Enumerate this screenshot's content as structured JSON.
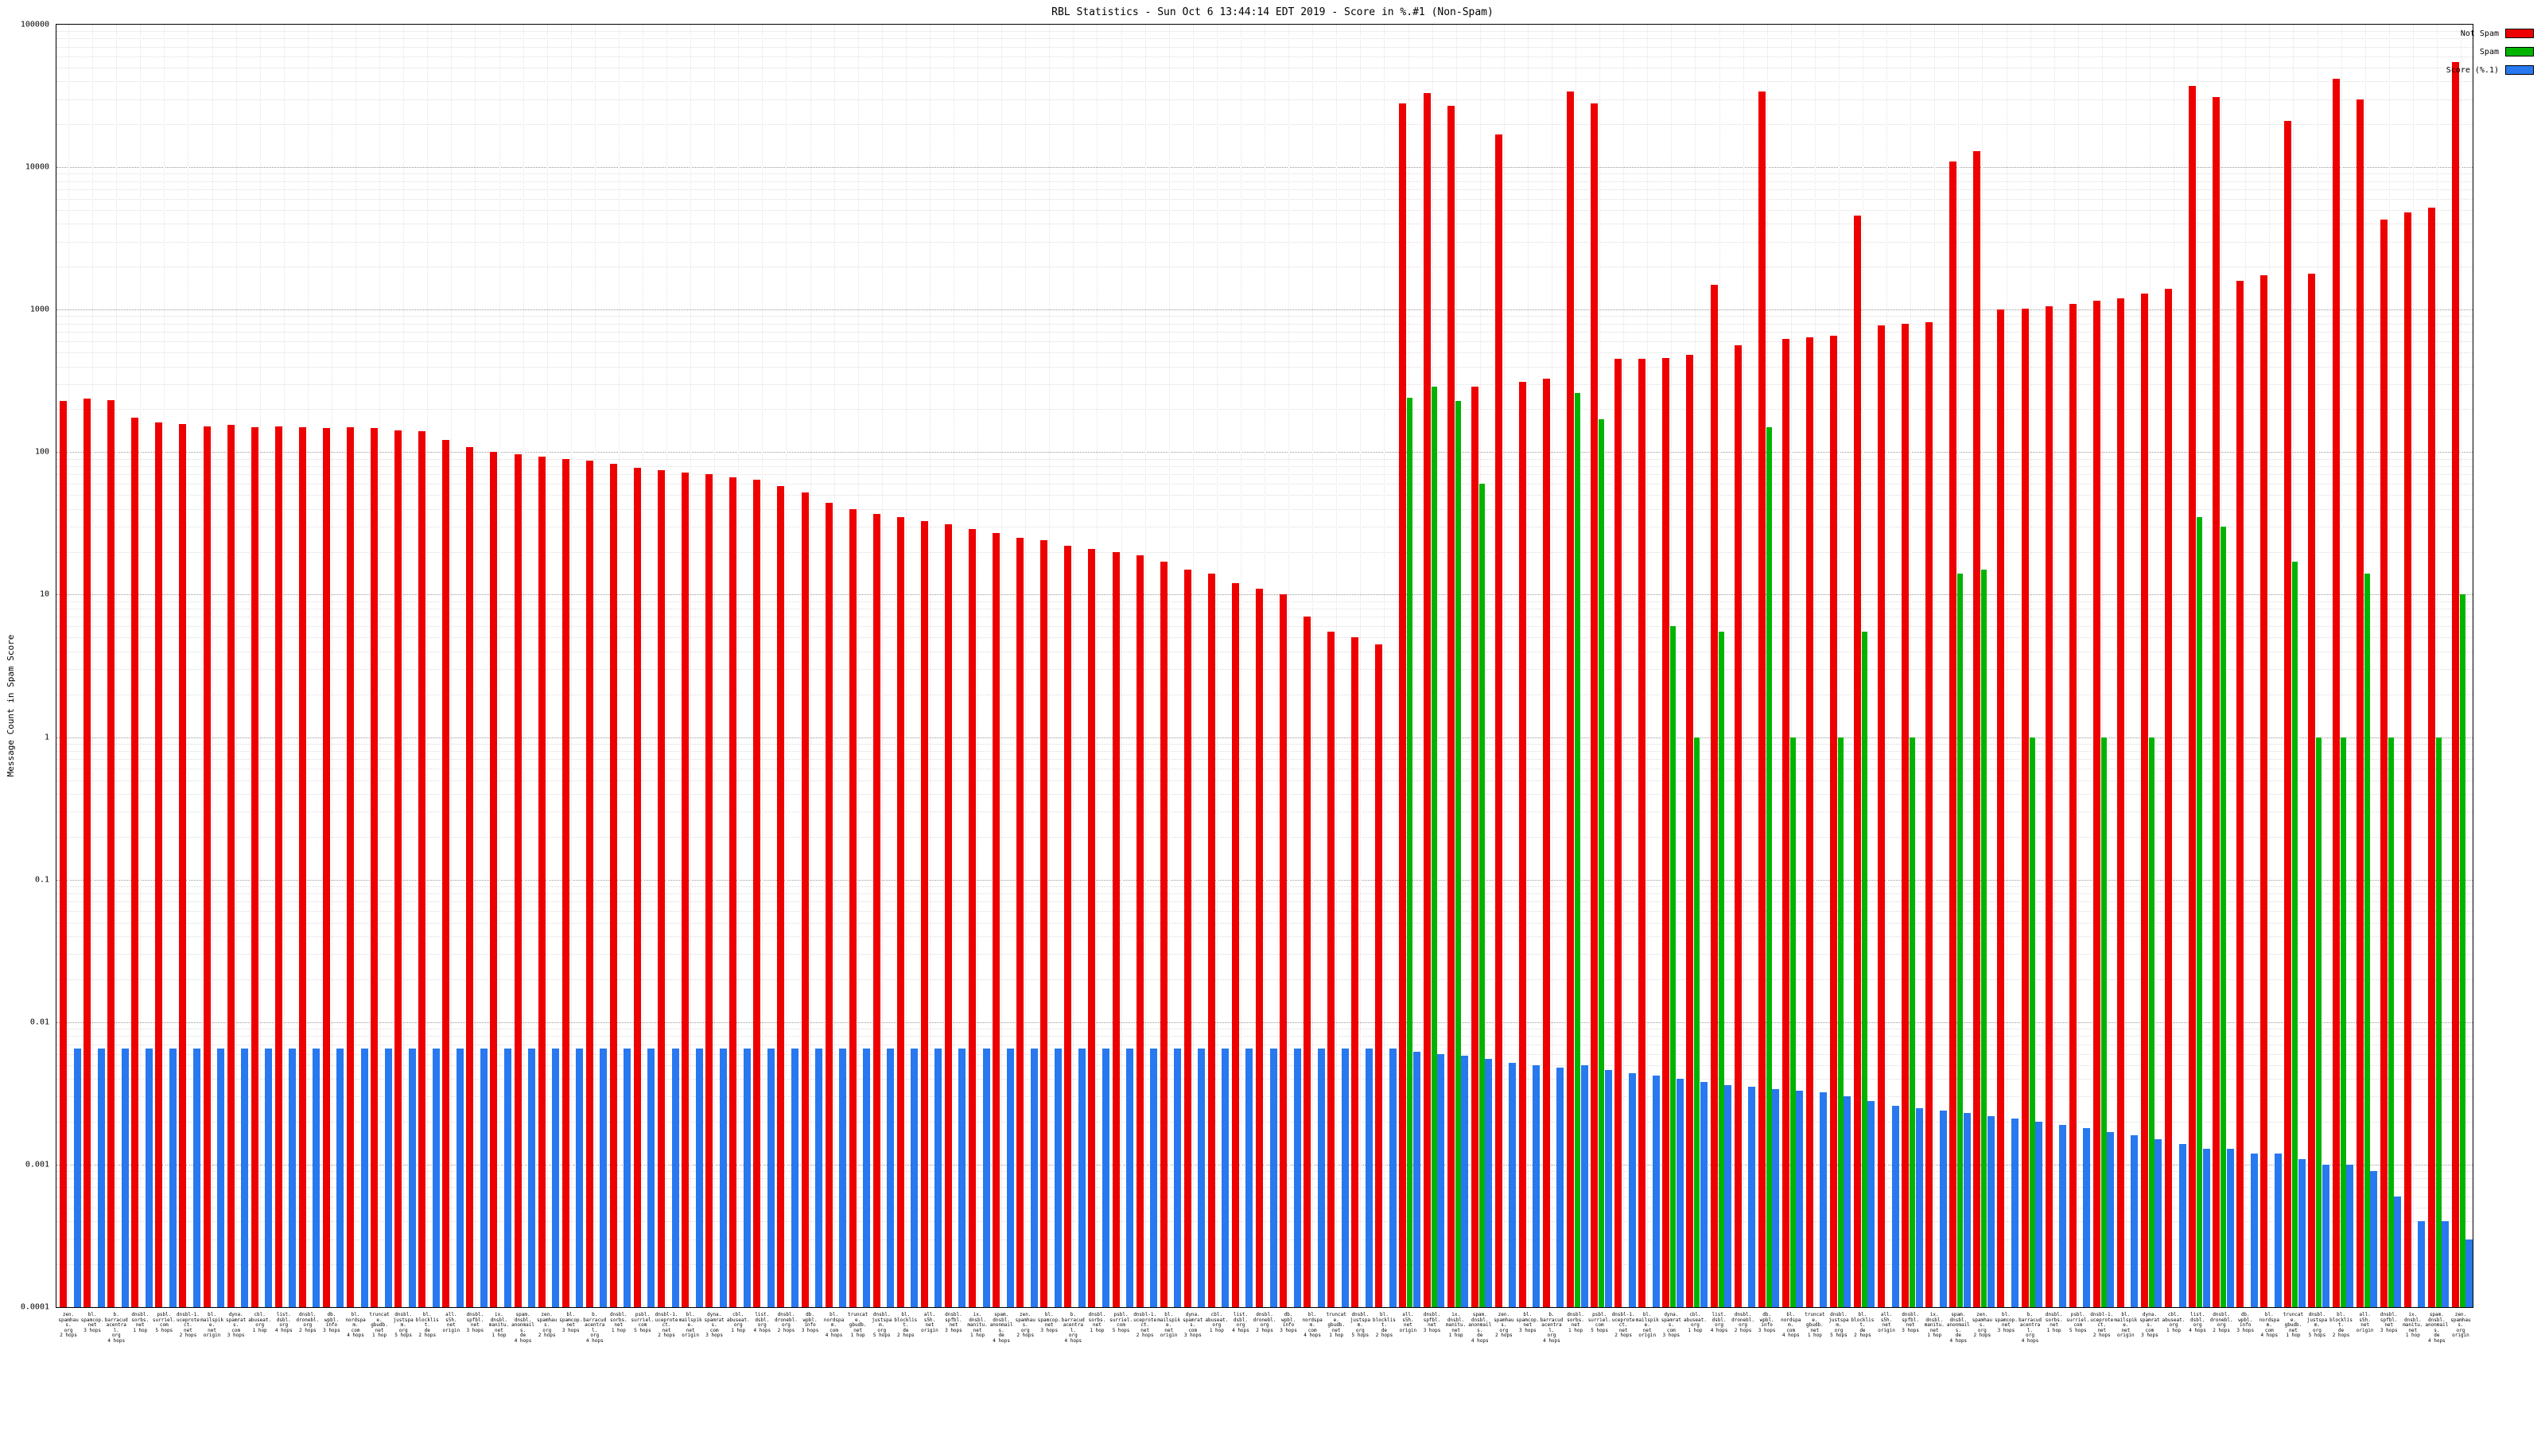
{
  "chart_data": {
    "type": "bar",
    "title": "RBL Statistics - Sun Oct 6 13:44:14 EDT 2019 - Score in %.#1 (Non-Spam)",
    "ylabel": "Message Count in Spam Score",
    "log_scale": true,
    "grid": true,
    "ylim": [
      0.0001,
      100000
    ],
    "yticks": [
      "100000",
      "10000",
      "1000",
      "100",
      "10",
      "1",
      "0.1",
      "0.01",
      "0.001",
      "0.0001"
    ],
    "legend": {
      "position": "top-right",
      "entries": [
        {
          "label": "Not Spam",
          "color": "#ee0000"
        },
        {
          "label": "Spam",
          "color": "#00b400"
        },
        {
          "label": "Score (%.1)",
          "color": "#2878f0"
        }
      ]
    },
    "series_names": [
      "Not Spam",
      "Spam",
      "Score (%.1)"
    ],
    "groups": [
      [
        "zen.spamhaus.org|2 hops",
        230,
        null,
        0.0065
      ],
      [
        "bl.spamcop.net|3 hops",
        238,
        null,
        0.0065
      ],
      [
        "b.barracudacentral.org|4 hops",
        232,
        null,
        0.0065
      ],
      [
        "dnsbl.sorbs.net|1 hop",
        175,
        null,
        0.0065
      ],
      [
        "psbl.surriel.com|5 hops",
        162,
        null,
        0.0065
      ],
      [
        "dnsbl-1.uceprotect.net|2 hops",
        158,
        null,
        0.0065
      ],
      [
        "bl.mailspike.net|origin",
        152,
        null,
        0.0065
      ],
      [
        "dyna.spamrats.com|3 hops",
        155,
        null,
        0.0065
      ],
      [
        "cbl.abuseat.org|1 hop",
        150,
        null,
        0.0065
      ],
      [
        "list.dsbl.org|4 hops",
        152,
        null,
        0.0065
      ],
      [
        "dnsbl.dronebl.org|2 hops",
        150,
        null,
        0.0065
      ],
      [
        "db.wpbl.info|3 hops",
        148,
        null,
        0.0065
      ],
      [
        "bl.nordspam.com|4 hops",
        150,
        null,
        0.0065
      ],
      [
        "truncate.gbudb.net|1 hop",
        147,
        null,
        0.0065
      ],
      [
        "dnsbl.justspam.org|5 hops",
        143,
        null,
        0.0065
      ],
      [
        "bl.blocklist.de|2 hops",
        140,
        null,
        0.0065
      ],
      [
        "all.s5h.net|origin",
        122,
        null,
        0.0065
      ],
      [
        "dnsbl.spfbl.net|3 hops",
        108,
        null,
        0.0065
      ],
      [
        "ix.dnsbl.manitu.net|1 hop",
        100,
        null,
        0.0065
      ],
      [
        "spam.dnsbl.anonmails.de|4 hops",
        97,
        null,
        0.0065
      ],
      [
        "zen.spamhaus.org|2 hops",
        93,
        null,
        0.0065
      ],
      [
        "bl.spamcop.net|3 hops",
        90,
        null,
        0.0065
      ],
      [
        "b.barracudacentral.org|4 hops",
        87,
        null,
        0.0065
      ],
      [
        "dnsbl.sorbs.net|1 hop",
        83,
        null,
        0.0065
      ],
      [
        "psbl.surriel.com|5 hops",
        78,
        null,
        0.0065
      ],
      [
        "dnsbl-1.uceprotect.net|2 hops",
        75,
        null,
        0.0065
      ],
      [
        "bl.mailspike.net|origin",
        72,
        null,
        0.0065
      ],
      [
        "dyna.spamrats.com|3 hops",
        70,
        null,
        0.0065
      ],
      [
        "cbl.abuseat.org|1 hop",
        67,
        null,
        0.0065
      ],
      [
        "list.dsbl.org|4 hops",
        64,
        null,
        0.0065
      ],
      [
        "dnsbl.dronebl.org|2 hops",
        58,
        null,
        0.0065
      ],
      [
        "db.wpbl.info|3 hops",
        52,
        null,
        0.0065
      ],
      [
        "bl.nordspam.com|4 hops",
        44,
        null,
        0.0065
      ],
      [
        "truncate.gbudb.net|1 hop",
        40,
        null,
        0.0065
      ],
      [
        "dnsbl.justspam.org|5 hops",
        37,
        null,
        0.0065
      ],
      [
        "bl.blocklist.de|2 hops",
        35,
        null,
        0.0065
      ],
      [
        "all.s5h.net|origin",
        33,
        null,
        0.0065
      ],
      [
        "dnsbl.spfbl.net|3 hops",
        31,
        null,
        0.0065
      ],
      [
        "ix.dnsbl.manitu.net|1 hop",
        29,
        null,
        0.0065
      ],
      [
        "spam.dnsbl.anonmails.de|4 hops",
        27,
        null,
        0.0065
      ],
      [
        "zen.spamhaus.org|2 hops",
        25,
        null,
        0.0065
      ],
      [
        "bl.spamcop.net|3 hops",
        24,
        null,
        0.0065
      ],
      [
        "b.barracudacentral.org|4 hops",
        22,
        null,
        0.0065
      ],
      [
        "dnsbl.sorbs.net|1 hop",
        21,
        null,
        0.0065
      ],
      [
        "psbl.surriel.com|5 hops",
        20,
        null,
        0.0065
      ],
      [
        "dnsbl-1.uceprotect.net|2 hops",
        19,
        null,
        0.0065
      ],
      [
        "bl.mailspike.net|origin",
        17,
        null,
        0.0065
      ],
      [
        "dyna.spamrats.com|3 hops",
        15,
        null,
        0.0065
      ],
      [
        "cbl.abuseat.org|1 hop",
        14,
        null,
        0.0065
      ],
      [
        "list.dsbl.org|4 hops",
        12,
        null,
        0.0065
      ],
      [
        "dnsbl.dronebl.org|2 hops",
        11,
        null,
        0.0065
      ],
      [
        "db.wpbl.info|3 hops",
        10,
        null,
        0.0065
      ],
      [
        "bl.nordspam.com|4 hops",
        7,
        null,
        0.0065
      ],
      [
        "truncate.gbudb.net|1 hop",
        5.5,
        null,
        0.0065
      ],
      [
        "dnsbl.justspam.org|5 hops",
        5,
        null,
        0.0065
      ],
      [
        "bl.blocklist.de|2 hops",
        4.5,
        null,
        0.0065
      ],
      [
        "all.s5h.net|origin",
        28000,
        240,
        0.0062
      ],
      [
        "dnsbl.spfbl.net|3 hops",
        33000,
        290,
        0.006
      ],
      [
        "ix.dnsbl.manitu.net|1 hop",
        27000,
        230,
        0.0058
      ],
      [
        "spam.dnsbl.anonmails.de|4 hops",
        290,
        60,
        0.0055
      ],
      [
        "zen.spamhaus.org|2 hops",
        17000,
        null,
        0.0052
      ],
      [
        "bl.spamcop.net|3 hops",
        310,
        null,
        0.005
      ],
      [
        "b.barracudacentral.org|4 hops",
        330,
        null,
        0.0048
      ],
      [
        "dnsbl.sorbs.net|1 hop",
        34000,
        260,
        0.005
      ],
      [
        "psbl.surriel.com|5 hops",
        28000,
        170,
        0.0046
      ],
      [
        "dnsbl-1.uceprotect.net|2 hops",
        450,
        null,
        0.0044
      ],
      [
        "bl.mailspike.net|origin",
        450,
        null,
        0.0042
      ],
      [
        "dyna.spamrats.com|3 hops",
        460,
        6,
        0.004
      ],
      [
        "cbl.abuseat.org|1 hop",
        480,
        1,
        0.0038
      ],
      [
        "list.dsbl.org|4 hops",
        1500,
        5.5,
        0.0036
      ],
      [
        "dnsbl.dronebl.org|2 hops",
        560,
        null,
        0.0035
      ],
      [
        "db.wpbl.info|3 hops",
        34000,
        150,
        0.0034
      ],
      [
        "bl.nordspam.com|4 hops",
        620,
        1,
        0.0033
      ],
      [
        "truncate.gbudb.net|1 hop",
        640,
        null,
        0.0032
      ],
      [
        "dnsbl.justspam.org|5 hops",
        660,
        1,
        0.003
      ],
      [
        "bl.blocklist.de|2 hops",
        4600,
        5.5,
        0.0028
      ],
      [
        "all.s5h.net|origin",
        780,
        null,
        0.0026
      ],
      [
        "dnsbl.spfbl.net|3 hops",
        800,
        1,
        0.0025
      ],
      [
        "ix.dnsbl.manitu.net|1 hop",
        820,
        null,
        0.0024
      ],
      [
        "spam.dnsbl.anonmails.de|4 hops",
        11000,
        14,
        0.0023
      ],
      [
        "zen.spamhaus.org|2 hops",
        13000,
        15,
        0.0022
      ],
      [
        "bl.spamcop.net|3 hops",
        1000,
        null,
        0.0021
      ],
      [
        "b.barracudacentral.org|4 hops",
        1020,
        1,
        0.002
      ],
      [
        "dnsbl.sorbs.net|1 hop",
        1050,
        null,
        0.0019
      ],
      [
        "psbl.surriel.com|5 hops",
        1100,
        null,
        0.0018
      ],
      [
        "dnsbl-1.uceprotect.net|2 hops",
        1150,
        1,
        0.0017
      ],
      [
        "bl.mailspike.net|origin",
        1200,
        null,
        0.0016
      ],
      [
        "dyna.spamrats.com|3 hops",
        1300,
        1,
        0.0015
      ],
      [
        "cbl.abuseat.org|1 hop",
        1400,
        null,
        0.0014
      ],
      [
        "list.dsbl.org|4 hops",
        37000,
        35,
        0.0013
      ],
      [
        "dnsbl.dronebl.org|2 hops",
        31000,
        30,
        0.0013
      ],
      [
        "db.wpbl.info|3 hops",
        1600,
        null,
        0.0012
      ],
      [
        "bl.nordspam.com|4 hops",
        1750,
        null,
        0.0012
      ],
      [
        "truncate.gbudb.net|1 hop",
        21000,
        17,
        0.0011
      ],
      [
        "dnsbl.justspam.org|5 hops",
        1800,
        1,
        0.001
      ],
      [
        "bl.blocklist.de|2 hops",
        42000,
        1,
        0.001
      ],
      [
        "all.s5h.net|origin",
        30000,
        14,
        0.0009
      ],
      [
        "dnsbl.spfbl.net|3 hops",
        4300,
        1,
        0.0006
      ],
      [
        "ix.dnsbl.manitu.net|1 hop",
        4800,
        null,
        0.0004
      ],
      [
        "spam.dnsbl.anonmails.de|4 hops",
        5200,
        1,
        0.0004
      ],
      [
        "zen.spamhaus.org|origin",
        55000,
        10,
        0.0003
      ]
    ]
  }
}
